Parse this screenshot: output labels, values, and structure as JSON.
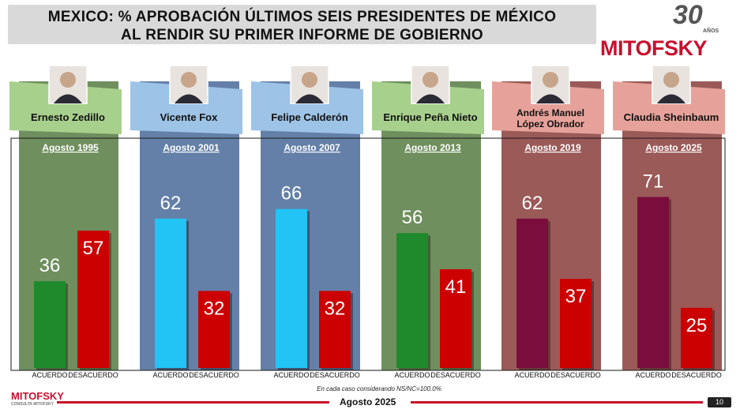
{
  "title_line1": "MEXICO: % APROBACIÓN ÚLTIMOS SEIS PRESIDENTES DE MÉXICO",
  "title_line2": "AL RENDIR SU PRIMER INFORME DE GOBIERNO",
  "brand": {
    "name": "MITOFSKY",
    "anniversary": "30",
    "anniversary_sub": "AÑOS",
    "footer_logo": "MITOFSKY",
    "footer_logo_sub": "CONSULTA MITOFSKY"
  },
  "footer": {
    "date": "Agosto 2025",
    "note": "En cada caso considerando NS/NC=100.0%",
    "page": "10"
  },
  "colors": {
    "approve_bright": "#21c4f5",
    "approve_green": "#1e8a2b",
    "approve_maroon": "#7a0d3c",
    "disapprove": "#cc0000"
  },
  "chart_data": {
    "type": "bar",
    "categories": [
      "Acuerdo",
      "Desacuerdo"
    ],
    "ylim": [
      0,
      80
    ],
    "panels": [
      {
        "president": "Ernesto Zedillo",
        "president_line2": "",
        "date": "Agosto 1995",
        "theme": "green",
        "series": [
          {
            "name": "Acuerdo",
            "value": 36
          },
          {
            "name": "Desacuerdo",
            "value": 57
          }
        ]
      },
      {
        "president": "Vicente Fox",
        "president_line2": "",
        "date": "Agosto 2001",
        "theme": "blue",
        "series": [
          {
            "name": "Acuerdo",
            "value": 62
          },
          {
            "name": "Desacuerdo",
            "value": 32
          }
        ]
      },
      {
        "president": "Felipe Calderón",
        "president_line2": "",
        "date": "Agosto 2007",
        "theme": "blue",
        "series": [
          {
            "name": "Acuerdo",
            "value": 66
          },
          {
            "name": "Desacuerdo",
            "value": 32
          }
        ]
      },
      {
        "president": "Enrique Peña Nieto",
        "president_line2": "",
        "date": "Agosto 2013",
        "theme": "green",
        "series": [
          {
            "name": "Acuerdo",
            "value": 56
          },
          {
            "name": "Desacuerdo",
            "value": 41
          }
        ]
      },
      {
        "president": "Andrés Manuel",
        "president_line2": "López Obrador",
        "date": "Agosto 2019",
        "theme": "red",
        "series": [
          {
            "name": "Acuerdo",
            "value": 62
          },
          {
            "name": "Desacuerdo",
            "value": 37
          }
        ]
      },
      {
        "president": "Claudia Sheinbaum",
        "president_line2": "",
        "date": "Agosto 2025",
        "theme": "red",
        "series": [
          {
            "name": "Acuerdo",
            "value": 71
          },
          {
            "name": "Desacuerdo",
            "value": 25
          }
        ]
      }
    ]
  }
}
